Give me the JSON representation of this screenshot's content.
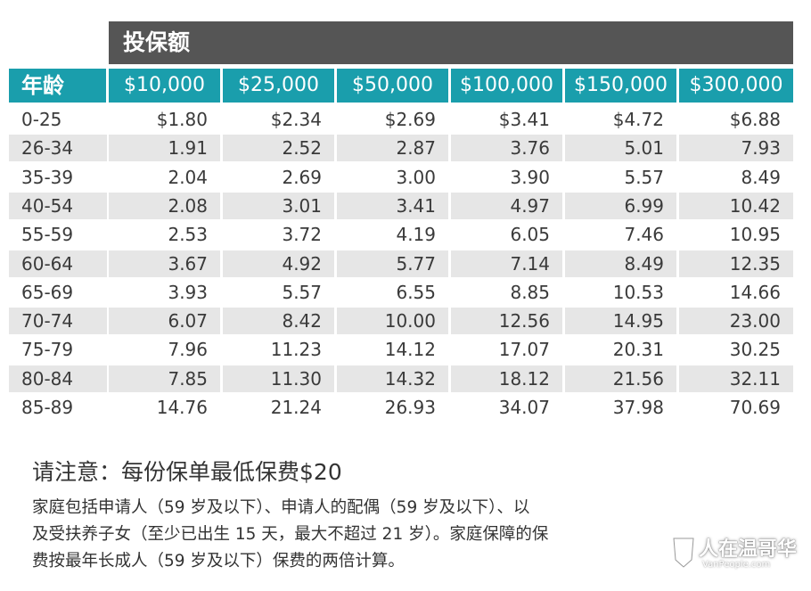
{
  "table": {
    "coverage_label": "投保额",
    "age_label": "年龄",
    "coverage_amounts": [
      "$10,000",
      "$25,000",
      "$50,000",
      "$100,000",
      "$150,000",
      "$300,000"
    ],
    "rows": [
      {
        "age": "0-25",
        "values": [
          "$1.80",
          "$2.34",
          "$2.69",
          "$3.41",
          "$4.72",
          "$6.88"
        ]
      },
      {
        "age": "26-34",
        "values": [
          "1.91",
          "2.52",
          "2.87",
          "3.76",
          "5.01",
          "7.93"
        ]
      },
      {
        "age": "35-39",
        "values": [
          "2.04",
          "2.69",
          "3.00",
          "3.90",
          "5.57",
          "8.49"
        ]
      },
      {
        "age": "40-54",
        "values": [
          "2.08",
          "3.01",
          "3.41",
          "4.97",
          "6.99",
          "10.42"
        ]
      },
      {
        "age": "55-59",
        "values": [
          "2.53",
          "3.72",
          "4.19",
          "6.05",
          "7.46",
          "10.95"
        ]
      },
      {
        "age": "60-64",
        "values": [
          "3.67",
          "4.92",
          "5.77",
          "7.14",
          "8.49",
          "12.35"
        ]
      },
      {
        "age": "65-69",
        "values": [
          "3.93",
          "5.57",
          "6.55",
          "8.85",
          "10.53",
          "14.66"
        ]
      },
      {
        "age": "70-74",
        "values": [
          "6.07",
          "8.42",
          "10.00",
          "12.56",
          "14.95",
          "23.00"
        ]
      },
      {
        "age": "75-79",
        "values": [
          "7.96",
          "11.23",
          "14.12",
          "17.07",
          "20.31",
          "30.25"
        ]
      },
      {
        "age": "80-84",
        "values": [
          "7.85",
          "11.30",
          "14.32",
          "18.12",
          "21.56",
          "32.11"
        ]
      },
      {
        "age": "85-89",
        "values": [
          "14.76",
          "21.24",
          "26.93",
          "34.07",
          "37.98",
          "70.69"
        ]
      }
    ]
  },
  "note": {
    "title": "请注意：每份保单最低保费$20",
    "body_lines": [
      "家庭包括申请人（59 岁及以下）、申请人的配偶（59 岁及以下）、以",
      "及受扶养子女（至少已出生 15 天，最大不超过 21 岁）。家庭保障的保",
      "费按最年长成人（59 岁及以下）保费的两倍计算。"
    ]
  },
  "watermark": {
    "name": "人在温哥华",
    "site": "VanPeople.com"
  },
  "colors": {
    "header_teal": "#1a9eac",
    "coverage_bar": "#555555",
    "row_shade": "#e6e6e6"
  }
}
